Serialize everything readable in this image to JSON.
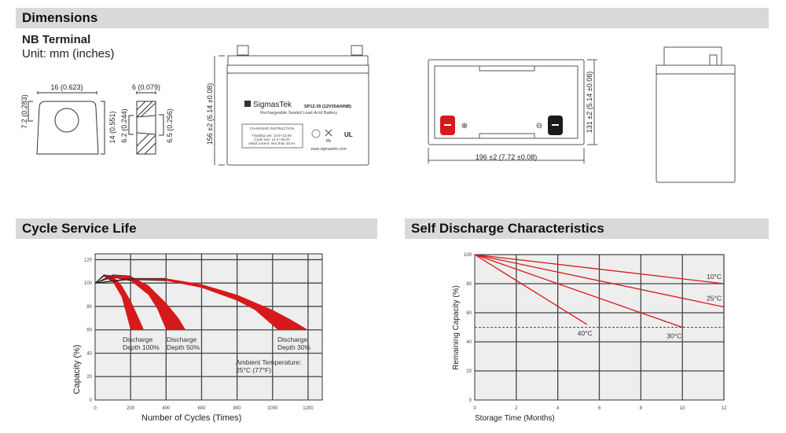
{
  "sections": {
    "dimensions": "Dimensions",
    "cycle": "Cycle Service Life",
    "self": "Self Discharge Characteristics"
  },
  "terminal": {
    "title": "NB Terminal",
    "unit": "Unit: mm (inches)",
    "width": "16 (0.623)",
    "top_h": "7.2 (0.283)",
    "height": "14 (0.551)",
    "thick": "6 (0.079)",
    "hole1": "6.2 (0.244)",
    "hole2": "6.5 (0.256)"
  },
  "battery": {
    "height_dim": "156 ±2 (6.14 ±0.08)",
    "brand": "SigmasTek",
    "model": "SP12-35 (12V35AH/NB)",
    "subtitle": "Rechargeable Sealed Lead-Acid Battery",
    "charging_title": "CHARGING INSTRUCTION",
    "charging_lines": [
      "Floating use: 13.5~13.8V",
      "Cycle use: 14.4~15.0V",
      "Initial current: less than 10.5A"
    ],
    "website": "www.sigmastek.com",
    "pb": "Pb",
    "length_dim": "196 ±2 (7.72 ±0.08)",
    "width_dim": "131 ±2 (5.14 ±0.08)",
    "plus": "⊕",
    "minus": "⊖"
  },
  "colors": {
    "header_bg": "#d9d9d9",
    "red": "#d7191c",
    "plot_bg": "#eeeeee"
  },
  "chart_data": [
    {
      "type": "area",
      "xlabel": "Number of Cycles (Times)",
      "ylabel": "Capacity (%)",
      "xlim": [
        0,
        1280
      ],
      "ylim": [
        0,
        125
      ],
      "xticks": [
        0,
        200,
        400,
        600,
        800,
        1000,
        1200
      ],
      "yticks": [
        0,
        20,
        40,
        60,
        80,
        100,
        120
      ],
      "grid": true,
      "annotations": [
        {
          "text": "Discharge\nDepth 100%",
          "lines": [
            "Discharge",
            "Depth 100%"
          ]
        },
        {
          "lines": [
            "Discharge",
            "Depth 50%"
          ]
        },
        {
          "lines": [
            "Discharge",
            "Depth 30%"
          ]
        },
        {
          "lines": [
            "Ambient Temperature:",
            "25°C (77°F)"
          ]
        }
      ],
      "bands": [
        {
          "label": "Discharge Depth 100%",
          "upper": [
            [
              0,
              100
            ],
            [
              50,
              107
            ],
            [
              100,
              106
            ],
            [
              150,
              98
            ],
            [
              200,
              85
            ],
            [
              240,
              72
            ],
            [
              275,
              60
            ]
          ],
          "lower": [
            [
              0,
              100
            ],
            [
              50,
              106
            ],
            [
              100,
              101
            ],
            [
              150,
              88
            ],
            [
              200,
              60
            ]
          ]
        },
        {
          "label": "Discharge Depth 50%",
          "upper": [
            [
              0,
              100
            ],
            [
              100,
              107
            ],
            [
              200,
              106
            ],
            [
              300,
              98
            ],
            [
              400,
              83
            ],
            [
              470,
              70
            ],
            [
              510,
              60
            ]
          ],
          "lower": [
            [
              0,
              100
            ],
            [
              100,
              105
            ],
            [
              200,
              102
            ],
            [
              300,
              90
            ],
            [
              350,
              78
            ],
            [
              400,
              60
            ]
          ]
        },
        {
          "label": "Discharge Depth 30%",
          "upper": [
            [
              0,
              100
            ],
            [
              200,
              104
            ],
            [
              400,
              104
            ],
            [
              600,
              99
            ],
            [
              800,
              90
            ],
            [
              1000,
              77
            ],
            [
              1100,
              69
            ],
            [
              1200,
              60
            ]
          ],
          "lower": [
            [
              0,
              100
            ],
            [
              200,
              103
            ],
            [
              400,
              102
            ],
            [
              600,
              96
            ],
            [
              800,
              85
            ],
            [
              900,
              77
            ],
            [
              1030,
              60
            ]
          ]
        }
      ]
    },
    {
      "type": "line",
      "xlabel": "Storage Time (Months)",
      "ylabel": "Remaining Capacity (%)",
      "xlim": [
        0,
        12
      ],
      "ylim": [
        0,
        100
      ],
      "xticks": [
        0,
        2,
        4,
        6,
        8,
        10,
        12
      ],
      "yticks": [
        0,
        20,
        40,
        60,
        80,
        100
      ],
      "grid": true,
      "reference_line": 50,
      "series": [
        {
          "name": "10°C",
          "points": [
            [
              0,
              100
            ],
            [
              12,
              80
            ]
          ]
        },
        {
          "name": "25°C",
          "points": [
            [
              0,
              100
            ],
            [
              12,
              64
            ]
          ]
        },
        {
          "name": "30°C",
          "points": [
            [
              0,
              100
            ],
            [
              10,
              50
            ]
          ]
        },
        {
          "name": "40°C",
          "points": [
            [
              0,
              100
            ],
            [
              5.4,
              52
            ]
          ]
        }
      ]
    }
  ]
}
